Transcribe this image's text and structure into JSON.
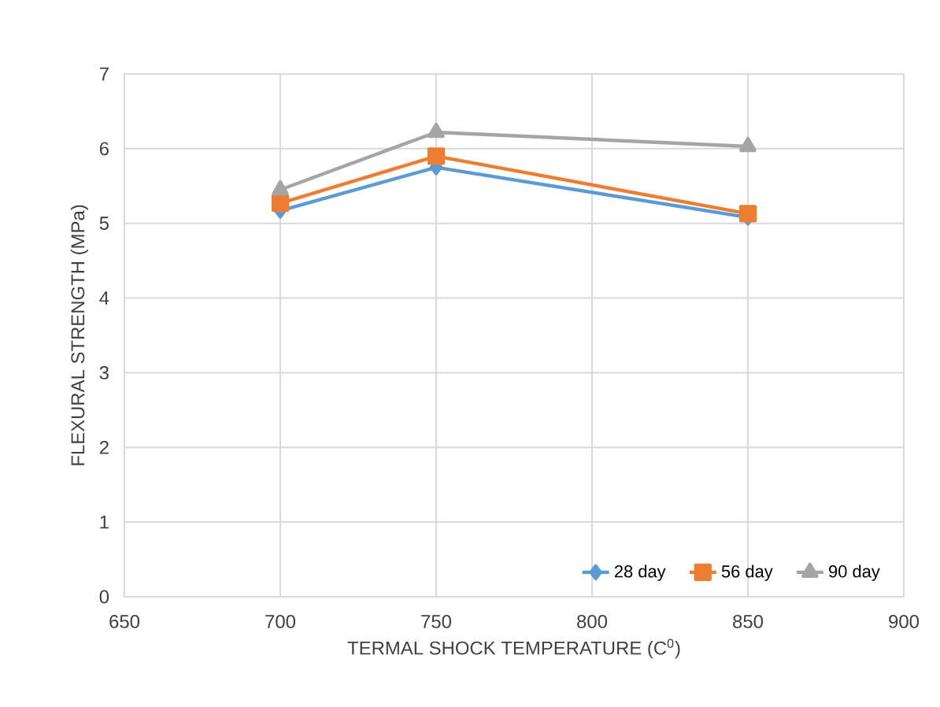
{
  "chart_data": {
    "type": "line",
    "xlabel": "TERMAL SHOCK TEMPERATURE (C$^{0}$)",
    "ylabel": "FLEXURAL STRENGTH (MPa)",
    "x": [
      700,
      750,
      850
    ],
    "series": [
      {
        "name": "28 day",
        "color": "#5b9bd5",
        "marker": "diamond",
        "values": [
          5.17,
          5.75,
          5.08
        ]
      },
      {
        "name": "56 day",
        "color": "#ed7d31",
        "marker": "square",
        "values": [
          5.27,
          5.9,
          5.13
        ]
      },
      {
        "name": "90 day",
        "color": "#a5a5a5",
        "marker": "triangle",
        "values": [
          5.45,
          6.22,
          6.03
        ]
      }
    ],
    "xlim": [
      650,
      900
    ],
    "xticks": [
      650,
      700,
      750,
      800,
      850,
      900
    ],
    "ylim": [
      0,
      7
    ],
    "yticks": [
      0,
      1,
      2,
      3,
      4,
      5,
      6,
      7
    ],
    "grid": true,
    "legend": "bottom"
  }
}
